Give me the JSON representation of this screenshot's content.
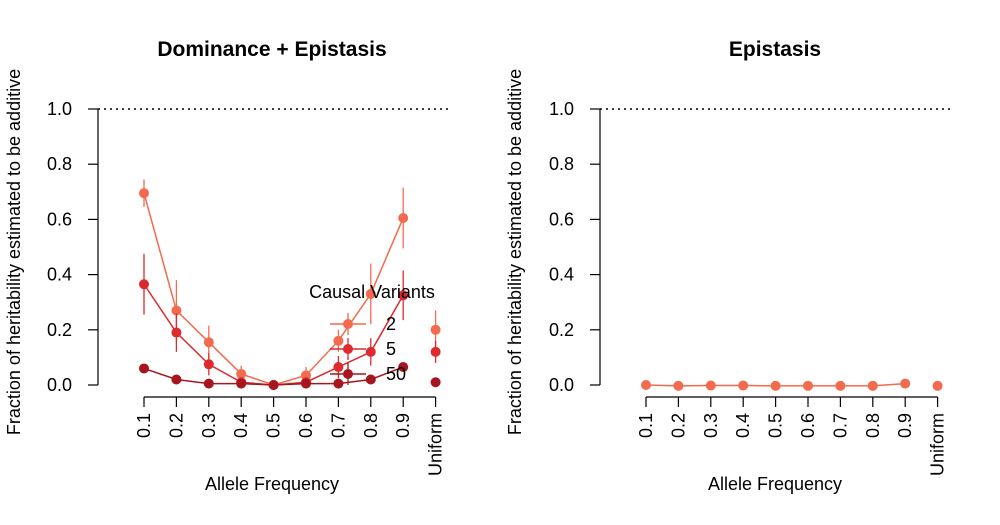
{
  "chart_data": [
    {
      "type": "line",
      "title": "Dominance + Epistasis",
      "xlabel": "Allele Frequency",
      "ylabel": "Fraction of heritability estimated to be additive",
      "categories": [
        "0.1",
        "0.2",
        "0.3",
        "0.4",
        "0.5",
        "0.6",
        "0.7",
        "0.8",
        "0.9",
        "Uniform"
      ],
      "ylim": [
        0,
        1
      ],
      "yticks": [
        "0.0",
        "0.2",
        "0.4",
        "0.6",
        "0.8",
        "1.0"
      ],
      "reference_line": 1.0,
      "legend": {
        "title": "Causal Variants",
        "position": "middle-right"
      },
      "series": [
        {
          "name": "2",
          "color": "#f26b4f",
          "connected_count": 9,
          "values": [
            0.695,
            0.27,
            0.155,
            0.04,
            0.0,
            0.035,
            0.16,
            0.33,
            0.605,
            0.2
          ],
          "err": [
            0.05,
            0.11,
            0.06,
            0.03,
            0.01,
            0.03,
            0.04,
            0.11,
            0.11,
            0.07
          ]
        },
        {
          "name": "5",
          "color": "#dc2a2e",
          "connected_count": 9,
          "values": [
            0.365,
            0.19,
            0.075,
            0.01,
            0.0,
            0.01,
            0.065,
            0.12,
            0.325,
            0.12
          ],
          "err": [
            0.11,
            0.07,
            0.04,
            0.01,
            0.005,
            0.01,
            0.04,
            0.05,
            0.09,
            0.04
          ]
        },
        {
          "name": "50",
          "color": "#a7161f",
          "connected_count": 9,
          "values": [
            0.06,
            0.02,
            0.005,
            0.005,
            0.0,
            0.005,
            0.005,
            0.02,
            0.065,
            0.01
          ],
          "err": [
            0.01,
            0.01,
            0.005,
            0.005,
            0.003,
            0.005,
            0.005,
            0.01,
            0.01,
            0.005
          ]
        }
      ]
    },
    {
      "type": "line",
      "title": "Epistasis",
      "xlabel": "Allele Frequency",
      "ylabel": "Fraction of heritability estimated to be additive",
      "categories": [
        "0.1",
        "0.2",
        "0.3",
        "0.4",
        "0.5",
        "0.6",
        "0.7",
        "0.8",
        "0.9",
        "Uniform"
      ],
      "ylim": [
        0,
        1
      ],
      "yticks": [
        "0.0",
        "0.2",
        "0.4",
        "0.6",
        "0.8",
        "1.0"
      ],
      "reference_line": 1.0,
      "series": [
        {
          "name": "2",
          "color": "#f26b4f",
          "connected_count": 9,
          "values": [
            0.0,
            -0.003,
            -0.002,
            -0.002,
            -0.003,
            -0.003,
            -0.003,
            -0.003,
            0.005,
            -0.003
          ],
          "err": [
            0.003,
            0.003,
            0.003,
            0.003,
            0.003,
            0.003,
            0.003,
            0.003,
            0.004,
            0.003
          ]
        }
      ]
    }
  ]
}
